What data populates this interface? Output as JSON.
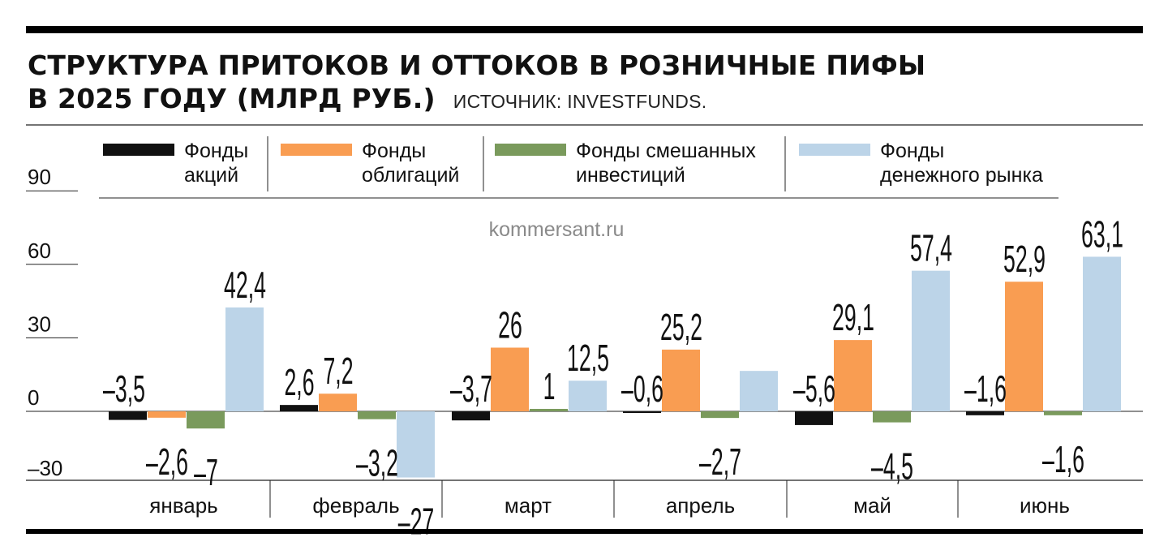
{
  "title_line1": "СТРУКТУРА ПРИТОКОВ И ОТТОКОВ В РОЗНИЧНЫЕ ПИФЫ",
  "title_line2": "В 2025 ГОДУ (МЛРД РУБ.)",
  "source": "ИСТОЧНИК: INVESTFUNDS.",
  "watermark": "kommersant.ru",
  "chart_data": {
    "type": "bar",
    "title": "СТРУКТУРА ПРИТОКОВ И ОТТОКОВ В РОЗНИЧНЫЕ ПИФЫ В 2025 ГОДУ (МЛРД РУБ.)",
    "categories": [
      "январь",
      "февраль",
      "март",
      "апрель",
      "май",
      "июнь"
    ],
    "series": [
      {
        "name_line1": "Фонды",
        "name_line2": "акций",
        "color": "#111111",
        "values": [
          -3.5,
          2.6,
          -3.7,
          -0.6,
          -5.6,
          -1.6
        ],
        "labels": [
          "–3,5",
          "2,6",
          "–3,7",
          "–0,6",
          "–5,6",
          "–1,6"
        ]
      },
      {
        "name_line1": "Фонды",
        "name_line2": "облигаций",
        "color": "#f99d52",
        "values": [
          -2.6,
          7.2,
          26,
          25.2,
          29.1,
          52.9
        ],
        "labels": [
          "–2,6",
          "7,2",
          "26",
          "25,2",
          "29,1",
          "52,9"
        ]
      },
      {
        "name_line1": "Фонды смешанных",
        "name_line2": "инвестиций",
        "color": "#7a9a5c",
        "values": [
          -7,
          -3.2,
          1,
          -2.7,
          -4.5,
          -1.6
        ],
        "labels": [
          "–7",
          "–3,2",
          "1",
          "–2,7",
          "–4,5",
          "–1,6"
        ]
      },
      {
        "name_line1": "Фонды",
        "name_line2": "денежного рынка",
        "color": "#bcd4e8",
        "values": [
          42.4,
          -27,
          12.5,
          16.5,
          57.4,
          63.1
        ],
        "labels": [
          "42,4",
          "–27",
          "12,5",
          "",
          "57,4",
          "63,1"
        ]
      }
    ],
    "yticks": [
      90,
      60,
      30,
      0,
      -30
    ],
    "ytick_labels": [
      "90",
      "60",
      "30",
      "0",
      "–30"
    ],
    "ylim": [
      -30,
      90
    ],
    "legend_position": "top",
    "grid": false
  }
}
